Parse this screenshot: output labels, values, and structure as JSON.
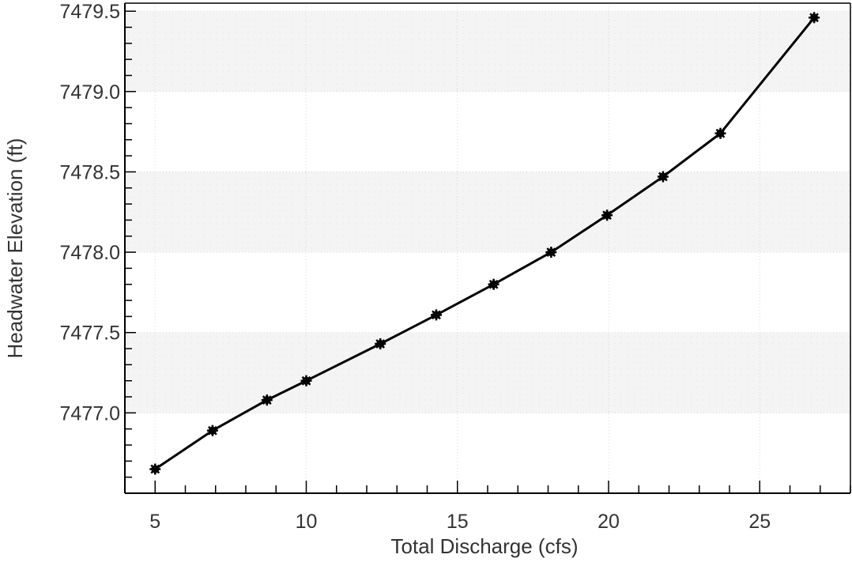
{
  "chart_data": {
    "type": "line",
    "title": "",
    "xlabel": "Total Discharge (cfs)",
    "ylabel": "Headwater Elevation (ft)",
    "xlim": [
      4,
      28
    ],
    "ylim": [
      7476.5,
      7479.55
    ],
    "x_ticks": [
      "5",
      "10",
      "15",
      "20",
      "25"
    ],
    "y_ticks": [
      "7477.0",
      "7477.5",
      "7478.0",
      "7478.5",
      "7479.0",
      "7479.5"
    ],
    "grid": true,
    "legend": "none",
    "series": [
      {
        "color": "#000000",
        "marker": "star",
        "x": [
          5.0,
          6.9,
          8.7,
          10.0,
          12.45,
          14.3,
          16.2,
          18.1,
          19.95,
          21.8,
          23.7,
          26.8
        ],
        "y": [
          7476.65,
          7476.89,
          7477.08,
          7477.2,
          7477.43,
          7477.61,
          7477.8,
          7478.0,
          7478.23,
          7478.47,
          7478.74,
          7479.46
        ]
      }
    ]
  }
}
